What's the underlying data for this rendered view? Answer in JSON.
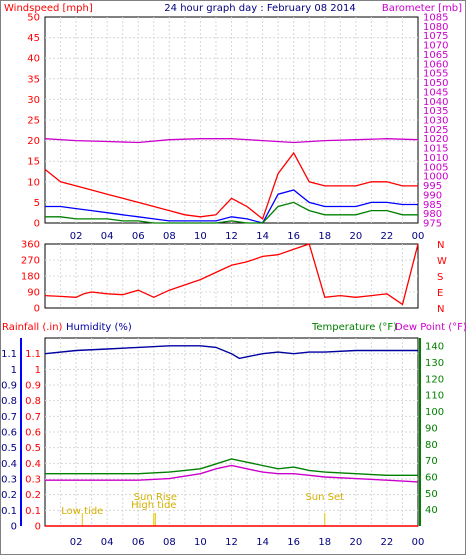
{
  "chart_data": [
    {
      "type": "line",
      "title": "24 hour graph day : February 08 2014",
      "ylabel": "Windspeed [mph]",
      "y2label": "Barometer [mb]",
      "x_ticks": [
        "02",
        "04",
        "06",
        "08",
        "10",
        "12",
        "14",
        "16",
        "18",
        "20",
        "22",
        "00"
      ],
      "ylim": [
        0,
        50
      ],
      "y_ticks": [
        0,
        5,
        10,
        15,
        20,
        25,
        30,
        35,
        40,
        45,
        50
      ],
      "y2lim": [
        975,
        1085
      ],
      "y2_ticks": [
        975,
        980,
        985,
        990,
        995,
        1000,
        1005,
        1010,
        1015,
        1020,
        1025,
        1030,
        1035,
        1040,
        1045,
        1050,
        1055,
        1060,
        1065,
        1070,
        1075,
        1080,
        1085
      ],
      "series": [
        {
          "color": "#ff0000",
          "axis": "left",
          "x": [
            0,
            1,
            2,
            3,
            4,
            5,
            6,
            7,
            8,
            9,
            10,
            11,
            12,
            13,
            14,
            15,
            16,
            17,
            18,
            19,
            20,
            21,
            22,
            23,
            24
          ],
          "values": [
            13,
            10,
            9,
            8,
            7,
            6,
            5,
            4,
            3,
            2,
            1.5,
            2,
            6,
            4,
            1,
            12,
            17,
            10,
            9,
            9,
            9,
            10,
            10,
            9,
            9
          ]
        },
        {
          "color": "#0000ff",
          "axis": "left",
          "x": [
            0,
            1,
            2,
            3,
            4,
            5,
            6,
            7,
            8,
            9,
            10,
            11,
            12,
            13,
            14,
            15,
            16,
            17,
            18,
            19,
            20,
            21,
            22,
            23,
            24
          ],
          "values": [
            4,
            4,
            3.5,
            3,
            2.5,
            2,
            1.5,
            1,
            0.5,
            0.5,
            0.5,
            0.5,
            1.5,
            1,
            0,
            7,
            8,
            5,
            4,
            4,
            4,
            5,
            5,
            4.5,
            4.5
          ]
        },
        {
          "color": "#008000",
          "axis": "left",
          "x": [
            0,
            1,
            2,
            3,
            4,
            5,
            6,
            7,
            8,
            9,
            10,
            11,
            12,
            13,
            14,
            15,
            16,
            17,
            18,
            19,
            20,
            21,
            22,
            23,
            24
          ],
          "values": [
            1.5,
            1.5,
            1,
            1,
            1,
            0.5,
            0.5,
            0,
            0,
            0,
            0,
            0,
            0.5,
            0,
            0,
            4,
            5,
            3,
            2,
            2,
            2,
            3,
            3,
            2,
            2
          ]
        },
        {
          "color": "#cc00cc",
          "axis": "right",
          "x": [
            0,
            2,
            4,
            6,
            8,
            10,
            12,
            14,
            16,
            18,
            20,
            22,
            24
          ],
          "values": [
            1020,
            1019,
            1018.5,
            1018,
            1019.5,
            1020,
            1020,
            1019,
            1018,
            1019,
            1019.5,
            1020,
            1019.5
          ]
        }
      ]
    },
    {
      "type": "line",
      "y_ticks": [
        0,
        90,
        180,
        270,
        360
      ],
      "ylim": [
        0,
        360
      ],
      "compass": [
        "N",
        "W",
        "S",
        "E",
        "N"
      ],
      "x_ticks": [
        "02",
        "04",
        "06",
        "08",
        "10",
        "12",
        "14",
        "16",
        "18",
        "20",
        "22",
        "00"
      ],
      "series": [
        {
          "color": "#ff0000",
          "x": [
            0,
            1,
            2,
            2.5,
            3,
            4,
            5,
            6,
            7,
            8,
            9,
            10,
            11,
            12,
            13,
            14,
            15,
            16,
            17,
            18,
            19,
            20,
            21,
            22,
            23,
            24
          ],
          "values": [
            70,
            65,
            60,
            80,
            90,
            80,
            75,
            100,
            60,
            100,
            130,
            160,
            200,
            240,
            260,
            290,
            300,
            330,
            360,
            60,
            70,
            60,
            70,
            80,
            20,
            360
          ]
        }
      ]
    },
    {
      "type": "line",
      "labels_left": [
        "Rainfall (.in)",
        "Humidity (%)"
      ],
      "labels_right": [
        "Temperature (°F)",
        "Dew Point (°F)"
      ],
      "y_left_ticks": [
        0,
        0.1,
        0.2,
        0.3,
        0.4,
        0.5,
        0.6,
        0.7,
        0.8,
        0.9,
        1,
        1.1
      ],
      "ylim_left": [
        0,
        1.2
      ],
      "y_right_ticks": [
        40,
        50,
        60,
        70,
        80,
        90,
        100,
        110,
        120,
        130,
        140
      ],
      "ylim_right": [
        30,
        145
      ],
      "x_ticks": [
        "02",
        "04",
        "06",
        "08",
        "10",
        "12",
        "14",
        "16",
        "18",
        "20",
        "22",
        "00"
      ],
      "annotations": [
        {
          "text": "Low tide",
          "x": 2.4
        },
        {
          "text": "Sun Rise",
          "x": 7.1
        },
        {
          "text": "High tide",
          "x": 7
        },
        {
          "text": "Sun Set",
          "x": 18
        }
      ],
      "series": [
        {
          "color": "#0000a0",
          "axis": "left",
          "x": [
            0,
            2,
            4,
            6,
            8,
            10,
            11,
            12,
            12.5,
            13,
            14,
            15,
            16,
            17,
            18,
            20,
            22,
            24
          ],
          "values": [
            1.1,
            1.12,
            1.13,
            1.14,
            1.15,
            1.15,
            1.14,
            1.1,
            1.07,
            1.08,
            1.1,
            1.11,
            1.1,
            1.11,
            1.11,
            1.12,
            1.12,
            1.12
          ]
        },
        {
          "color": "#008000",
          "axis": "right",
          "x": [
            0,
            2,
            4,
            6,
            8,
            10,
            11,
            12,
            13,
            14,
            15,
            16,
            17,
            18,
            20,
            22,
            24
          ],
          "values": [
            62,
            62,
            62,
            62,
            63,
            65,
            68,
            71,
            69,
            67,
            65,
            66,
            64,
            63,
            62,
            61,
            61
          ]
        },
        {
          "color": "#cc00cc",
          "axis": "right",
          "x": [
            0,
            2,
            4,
            6,
            8,
            10,
            11,
            12,
            13,
            14,
            15,
            16,
            17,
            18,
            20,
            22,
            24
          ],
          "values": [
            58,
            58,
            58,
            58,
            59,
            62,
            65,
            67,
            65,
            63,
            62,
            62,
            61,
            60,
            59,
            58,
            57
          ]
        },
        {
          "color": "#ff0000",
          "axis": "left",
          "x": [
            0,
            24
          ],
          "values": [
            0,
            0
          ]
        }
      ]
    }
  ]
}
